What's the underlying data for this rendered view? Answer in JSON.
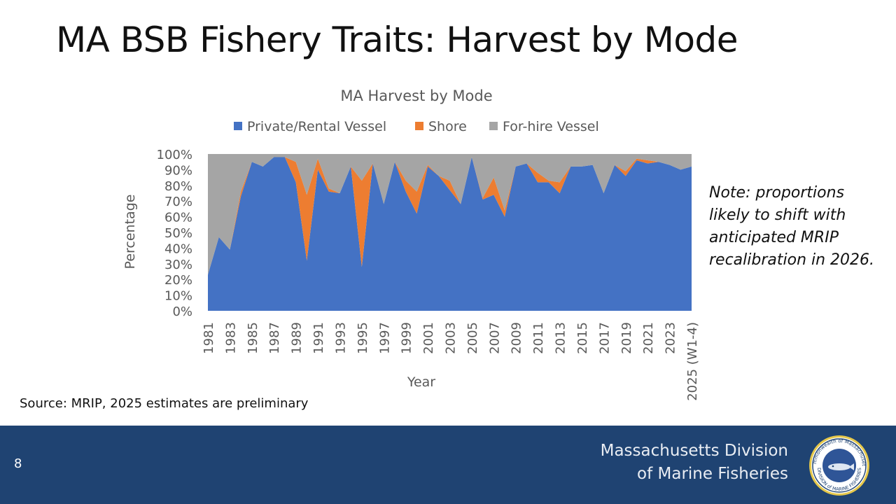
{
  "slide": {
    "title": "MA BSB Fishery Traits: Harvest by Mode",
    "note": "Note: proportions likely to shift with anticipated MRIP recalibration in 2026.",
    "source": "Source: MRIP, 2025 estimates are preliminary",
    "page_number": "8"
  },
  "footer": {
    "org_line1": "Massachusetts Division",
    "org_line2": "of Marine Fisheries",
    "seal_text_top": "Commonwealth of Massachusetts",
    "seal_text_bottom": "DIVISION of MARINE FISHERIES"
  },
  "colors": {
    "private": "#4472c4",
    "shore": "#ed7d31",
    "forhire": "#a5a5a5",
    "footer_bg": "#1f4372"
  },
  "chart_data": {
    "type": "area",
    "stacked": "percent",
    "title": "MA Harvest by Mode",
    "xlabel": "Year",
    "ylabel": "Percentage",
    "ylim": [
      0,
      100
    ],
    "y_ticks": [
      "0%",
      "10%",
      "20%",
      "30%",
      "40%",
      "50%",
      "60%",
      "70%",
      "80%",
      "90%",
      "100%"
    ],
    "legend_position": "top",
    "grid": false,
    "x": [
      "1981",
      "1982",
      "1983",
      "1984",
      "1985",
      "1986",
      "1987",
      "1988",
      "1989",
      "1990",
      "1991",
      "1992",
      "1993",
      "1994",
      "1995",
      "1996",
      "1997",
      "1998",
      "1999",
      "2000",
      "2001",
      "2002",
      "2003",
      "2004",
      "2005",
      "2006",
      "2007",
      "2008",
      "2009",
      "2010",
      "2011",
      "2012",
      "2013",
      "2014",
      "2015",
      "2016",
      "2017",
      "2018",
      "2019",
      "2020",
      "2021",
      "2022",
      "2023",
      "2024",
      "2025 (W1-4)"
    ],
    "x_tick_labels": [
      "1981",
      "1983",
      "1985",
      "1987",
      "1989",
      "1991",
      "1993",
      "1995",
      "1997",
      "1999",
      "2001",
      "2003",
      "2005",
      "2007",
      "2009",
      "2011",
      "2013",
      "2015",
      "2017",
      "2019",
      "2021",
      "2023",
      "2025 (W1-4)"
    ],
    "series": [
      {
        "name": "Private/Rental Vessel",
        "values": [
          23,
          47,
          39,
          73,
          95,
          92,
          98,
          98,
          82,
          32,
          90,
          76,
          75,
          92,
          28,
          94,
          68,
          95,
          76,
          62,
          92,
          86,
          77,
          68,
          98,
          71,
          74,
          60,
          92,
          94,
          82,
          82,
          75,
          92,
          92,
          93,
          75,
          93,
          86,
          96,
          94,
          95,
          93,
          90,
          92
        ]
      },
      {
        "name": "Shore",
        "values": [
          0,
          0,
          0,
          3,
          0,
          0,
          0,
          0,
          13,
          42,
          7,
          2,
          0,
          0,
          55,
          0,
          0,
          0,
          7,
          14,
          1,
          0,
          6,
          0,
          0,
          1,
          11,
          4,
          0,
          0,
          6,
          1,
          7,
          0,
          0,
          0,
          0,
          0,
          3,
          1,
          2,
          0,
          0,
          0,
          0
        ]
      },
      {
        "name": "For-hire Vessel",
        "values": [
          77,
          53,
          61,
          24,
          5,
          8,
          2,
          2,
          5,
          26,
          3,
          22,
          25,
          8,
          17,
          6,
          32,
          5,
          17,
          24,
          7,
          14,
          17,
          32,
          2,
          28,
          15,
          36,
          8,
          6,
          12,
          17,
          18,
          8,
          8,
          7,
          25,
          7,
          11,
          3,
          4,
          5,
          7,
          10,
          8
        ]
      }
    ]
  }
}
